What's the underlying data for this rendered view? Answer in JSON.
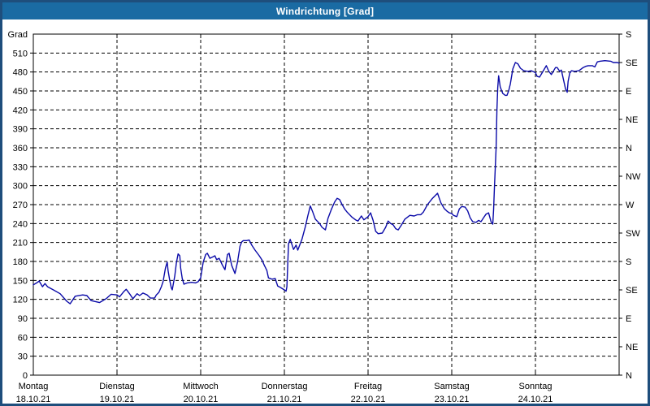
{
  "window": {
    "title": "Windrichtung [Grad]"
  },
  "colors": {
    "titlebar_bg": "#1a6ba3",
    "window_border": "#1e4e7c",
    "plot_border": "#000000",
    "grid": "#000000",
    "line": "#0a0aa8",
    "background": "#ffffff",
    "text": "#000000"
  },
  "chart_data": {
    "type": "line",
    "title": "Windrichtung [Grad]",
    "ylabel_left": "Grad",
    "ylim": [
      0,
      540
    ],
    "xlim_days": [
      0,
      7
    ],
    "grid": "dashed",
    "legend": "none",
    "y_left_ticks": [
      0,
      30,
      60,
      90,
      120,
      150,
      180,
      210,
      240,
      270,
      300,
      330,
      360,
      390,
      420,
      450,
      480,
      510
    ],
    "y_right_labels": [
      {
        "deg": 0,
        "label": "N"
      },
      {
        "deg": 45,
        "label": "NE"
      },
      {
        "deg": 90,
        "label": "E"
      },
      {
        "deg": 135,
        "label": "SE"
      },
      {
        "deg": 180,
        "label": "S"
      },
      {
        "deg": 225,
        "label": "SW"
      },
      {
        "deg": 270,
        "label": "W"
      },
      {
        "deg": 315,
        "label": "NW"
      },
      {
        "deg": 360,
        "label": "N"
      },
      {
        "deg": 405,
        "label": "NE"
      },
      {
        "deg": 450,
        "label": "E"
      },
      {
        "deg": 495,
        "label": "SE"
      },
      {
        "deg": 540,
        "label": "S"
      }
    ],
    "x_day_ticks": [
      {
        "day_index": 0,
        "name": "Montag",
        "date": "18.10.21"
      },
      {
        "day_index": 1,
        "name": "Dienstag",
        "date": "19.10.21"
      },
      {
        "day_index": 2,
        "name": "Mittwoch",
        "date": "20.10.21"
      },
      {
        "day_index": 3,
        "name": "Donnerstag",
        "date": "21.10.21"
      },
      {
        "day_index": 4,
        "name": "Freitag",
        "date": "22.10.21"
      },
      {
        "day_index": 5,
        "name": "Samstag",
        "date": "23.10.21"
      },
      {
        "day_index": 6,
        "name": "Sonntag",
        "date": "24.10.21"
      }
    ],
    "series": [
      {
        "name": "Windrichtung",
        "points": [
          [
            0.0,
            143
          ],
          [
            0.04,
            146
          ],
          [
            0.07,
            149
          ],
          [
            0.11,
            140
          ],
          [
            0.14,
            145
          ],
          [
            0.17,
            140
          ],
          [
            0.24,
            135
          ],
          [
            0.32,
            129
          ],
          [
            0.4,
            117
          ],
          [
            0.44,
            113
          ],
          [
            0.5,
            125
          ],
          [
            0.59,
            127
          ],
          [
            0.64,
            126
          ],
          [
            0.69,
            118
          ],
          [
            0.79,
            115
          ],
          [
            0.87,
            121
          ],
          [
            0.93,
            128
          ],
          [
            1.0,
            127
          ],
          [
            1.03,
            124
          ],
          [
            1.08,
            132
          ],
          [
            1.11,
            136
          ],
          [
            1.16,
            127
          ],
          [
            1.19,
            121
          ],
          [
            1.24,
            129
          ],
          [
            1.27,
            126
          ],
          [
            1.31,
            130
          ],
          [
            1.36,
            127
          ],
          [
            1.4,
            122
          ],
          [
            1.45,
            122
          ],
          [
            1.47,
            127
          ],
          [
            1.5,
            131
          ],
          [
            1.53,
            140
          ],
          [
            1.55,
            148
          ],
          [
            1.58,
            170
          ],
          [
            1.6,
            179
          ],
          [
            1.61,
            166
          ],
          [
            1.63,
            150
          ],
          [
            1.65,
            138
          ],
          [
            1.66,
            135
          ],
          [
            1.69,
            157
          ],
          [
            1.71,
            178
          ],
          [
            1.73,
            192
          ],
          [
            1.75,
            189
          ],
          [
            1.76,
            170
          ],
          [
            1.78,
            153
          ],
          [
            1.8,
            144
          ],
          [
            1.84,
            146
          ],
          [
            1.89,
            147
          ],
          [
            1.94,
            146
          ],
          [
            1.97,
            148
          ],
          [
            2.0,
            154
          ],
          [
            2.03,
            179
          ],
          [
            2.06,
            191
          ],
          [
            2.08,
            193
          ],
          [
            2.11,
            185
          ],
          [
            2.14,
            187
          ],
          [
            2.17,
            189
          ],
          [
            2.19,
            183
          ],
          [
            2.22,
            185
          ],
          [
            2.26,
            174
          ],
          [
            2.29,
            167
          ],
          [
            2.32,
            191
          ],
          [
            2.34,
            193
          ],
          [
            2.37,
            174
          ],
          [
            2.41,
            161
          ],
          [
            2.44,
            179
          ],
          [
            2.47,
            204
          ],
          [
            2.49,
            211
          ],
          [
            2.51,
            213
          ],
          [
            2.55,
            213
          ],
          [
            2.58,
            214
          ],
          [
            2.61,
            206
          ],
          [
            2.65,
            198
          ],
          [
            2.7,
            189
          ],
          [
            2.73,
            183
          ],
          [
            2.76,
            174
          ],
          [
            2.79,
            166
          ],
          [
            2.81,
            154
          ],
          [
            2.85,
            152
          ],
          [
            2.89,
            153
          ],
          [
            2.92,
            141
          ],
          [
            2.95,
            139
          ],
          [
            3.0,
            135
          ],
          [
            3.02,
            133
          ],
          [
            3.03,
            140
          ],
          [
            3.05,
            208
          ],
          [
            3.07,
            215
          ],
          [
            3.11,
            199
          ],
          [
            3.14,
            206
          ],
          [
            3.16,
            198
          ],
          [
            3.21,
            215
          ],
          [
            3.25,
            235
          ],
          [
            3.28,
            252
          ],
          [
            3.31,
            268
          ],
          [
            3.34,
            258
          ],
          [
            3.37,
            247
          ],
          [
            3.42,
            240
          ],
          [
            3.45,
            234
          ],
          [
            3.49,
            230
          ],
          [
            3.52,
            248
          ],
          [
            3.56,
            262
          ],
          [
            3.6,
            274
          ],
          [
            3.63,
            280
          ],
          [
            3.66,
            278
          ],
          [
            3.69,
            270
          ],
          [
            3.72,
            263
          ],
          [
            3.75,
            258
          ],
          [
            3.81,
            250
          ],
          [
            3.85,
            246
          ],
          [
            3.88,
            244
          ],
          [
            3.92,
            252
          ],
          [
            3.95,
            246
          ],
          [
            4.0,
            251
          ],
          [
            4.03,
            257
          ],
          [
            4.06,
            245
          ],
          [
            4.09,
            228
          ],
          [
            4.12,
            224
          ],
          [
            4.17,
            225
          ],
          [
            4.21,
            234
          ],
          [
            4.24,
            244
          ],
          [
            4.27,
            240
          ],
          [
            4.3,
            238
          ],
          [
            4.33,
            232
          ],
          [
            4.36,
            230
          ],
          [
            4.4,
            238
          ],
          [
            4.44,
            247
          ],
          [
            4.47,
            250
          ],
          [
            4.5,
            253
          ],
          [
            4.55,
            252
          ],
          [
            4.59,
            254
          ],
          [
            4.63,
            254
          ],
          [
            4.66,
            258
          ],
          [
            4.71,
            270
          ],
          [
            4.77,
            280
          ],
          [
            4.83,
            288
          ],
          [
            4.87,
            273
          ],
          [
            4.91,
            264
          ],
          [
            4.94,
            260
          ],
          [
            4.97,
            257
          ],
          [
            5.0,
            256
          ],
          [
            5.02,
            253
          ],
          [
            5.06,
            251
          ],
          [
            5.09,
            263
          ],
          [
            5.12,
            267
          ],
          [
            5.16,
            266
          ],
          [
            5.19,
            260
          ],
          [
            5.22,
            249
          ],
          [
            5.25,
            243
          ],
          [
            5.29,
            242
          ],
          [
            5.32,
            245
          ],
          [
            5.35,
            243
          ],
          [
            5.38,
            249
          ],
          [
            5.41,
            255
          ],
          [
            5.44,
            257
          ],
          [
            5.47,
            243
          ],
          [
            5.49,
            239
          ],
          [
            5.5,
            262
          ],
          [
            5.51,
            296
          ],
          [
            5.53,
            360
          ],
          [
            5.54,
            420
          ],
          [
            5.55,
            455
          ],
          [
            5.56,
            474
          ],
          [
            5.58,
            456
          ],
          [
            5.61,
            446
          ],
          [
            5.64,
            443
          ],
          [
            5.66,
            443
          ],
          [
            5.68,
            450
          ],
          [
            5.7,
            461
          ],
          [
            5.73,
            485
          ],
          [
            5.76,
            495
          ],
          [
            5.79,
            493
          ],
          [
            5.82,
            486
          ],
          [
            5.86,
            482
          ],
          [
            5.91,
            481
          ],
          [
            5.95,
            482
          ],
          [
            6.0,
            479
          ],
          [
            6.02,
            473
          ],
          [
            6.05,
            472
          ],
          [
            6.09,
            481
          ],
          [
            6.13,
            490
          ],
          [
            6.16,
            481
          ],
          [
            6.19,
            476
          ],
          [
            6.24,
            487
          ],
          [
            6.26,
            487
          ],
          [
            6.29,
            481
          ],
          [
            6.31,
            483
          ],
          [
            6.34,
            465
          ],
          [
            6.36,
            453
          ],
          [
            6.38,
            448
          ],
          [
            6.39,
            465
          ],
          [
            6.41,
            478
          ],
          [
            6.43,
            482
          ],
          [
            6.47,
            481
          ],
          [
            6.52,
            482
          ],
          [
            6.57,
            487
          ],
          [
            6.6,
            489
          ],
          [
            6.63,
            490
          ],
          [
            6.68,
            490
          ],
          [
            6.71,
            488
          ],
          [
            6.74,
            496
          ],
          [
            6.77,
            497
          ],
          [
            6.83,
            498
          ],
          [
            6.9,
            497
          ],
          [
            6.93,
            495
          ],
          [
            6.98,
            495
          ],
          [
            7.0,
            494
          ]
        ]
      }
    ]
  }
}
